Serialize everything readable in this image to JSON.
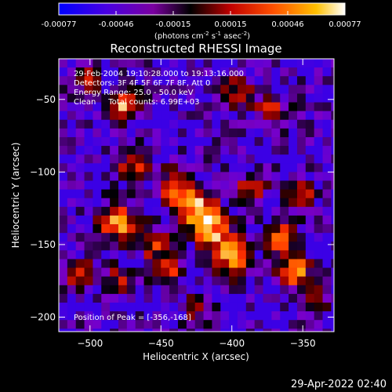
{
  "colorbar": {
    "ticks": [
      "-0.00077",
      "-0.00046",
      "-0.00015",
      "0.00015",
      "0.00046",
      "0.00077"
    ],
    "units_prefix": "(photons cm",
    "units_exp1": "-2",
    "units_mid": " s",
    "units_exp2": "-1",
    "units_mid2": " asec",
    "units_exp3": "-2",
    "units_suffix": ")"
  },
  "image": {
    "title": "Reconstructed RHESSI Image",
    "info_lines": [
      "29-Feb-2004 19:10:28.000 to 19:13:16.000",
      "Detectors: 3F 4F 5F 6F 7F 8F, Att 0",
      "Energy Range: 25.0 - 50.0 keV",
      "Clean     Total counts: 6.99E+03"
    ],
    "peak_text": "Position of Peak = [-356,-168]",
    "footer_timestamp": "29-Apr-2022 02:40"
  },
  "chart_data": {
    "type": "heatmap",
    "title": "Reconstructed RHESSI Image",
    "xlabel": "Heliocentric X (arcsec)",
    "ylabel": "Heliocentric Y (arcsec)",
    "xlim": [
      -522,
      -328
    ],
    "ylim": [
      -210,
      -22
    ],
    "xticks": [
      -500,
      -450,
      -400,
      -350
    ],
    "yticks": [
      -50,
      -100,
      -150,
      -200
    ],
    "color_range": [
      -0.00077,
      0.00077
    ],
    "colormap": [
      "#0000ff",
      "#7a00c8",
      "#000000",
      "#a00000",
      "#ff3000",
      "#ffa000",
      "#ffffff"
    ],
    "peak": {
      "x": -356,
      "y": -168
    },
    "blobs": [
      {
        "x": -476,
        "y": -55,
        "amp": 0.9,
        "sigma": 7
      },
      {
        "x": -502,
        "y": -35,
        "amp": 0.6,
        "sigma": 7
      },
      {
        "x": -395,
        "y": -45,
        "amp": 0.55,
        "sigma": 8
      },
      {
        "x": -372,
        "y": -58,
        "amp": 0.55,
        "sigma": 8
      },
      {
        "x": -470,
        "y": -95,
        "amp": 0.6,
        "sigma": 8
      },
      {
        "x": -440,
        "y": -110,
        "amp": 0.7,
        "sigma": 9
      },
      {
        "x": -425,
        "y": -125,
        "amp": 0.95,
        "sigma": 9
      },
      {
        "x": -415,
        "y": -140,
        "amp": 0.9,
        "sigma": 9
      },
      {
        "x": -480,
        "y": -135,
        "amp": 0.9,
        "sigma": 9
      },
      {
        "x": -455,
        "y": -150,
        "amp": 0.6,
        "sigma": 8
      },
      {
        "x": -400,
        "y": -158,
        "amp": 0.95,
        "sigma": 9
      },
      {
        "x": -385,
        "y": -110,
        "amp": 0.6,
        "sigma": 8
      },
      {
        "x": -350,
        "y": -115,
        "amp": 0.7,
        "sigma": 7
      },
      {
        "x": -365,
        "y": -145,
        "amp": 0.85,
        "sigma": 8
      },
      {
        "x": -356,
        "y": -168,
        "amp": 1.0,
        "sigma": 7
      },
      {
        "x": -508,
        "y": -170,
        "amp": 0.6,
        "sigma": 7
      },
      {
        "x": -480,
        "y": -175,
        "amp": 0.5,
        "sigma": 7
      },
      {
        "x": -445,
        "y": -170,
        "amp": 0.6,
        "sigma": 7
      },
      {
        "x": -340,
        "y": -185,
        "amp": 0.5,
        "sigma": 7
      },
      {
        "x": -425,
        "y": -195,
        "amp": 0.4,
        "sigma": 7
      }
    ]
  }
}
